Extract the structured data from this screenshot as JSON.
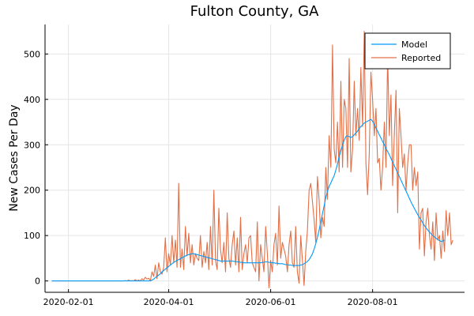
{
  "chart_data": {
    "type": "line",
    "title": "Fulton County, GA",
    "xlabel": "",
    "ylabel": "New Cases Per Day",
    "x_ticks": [
      "2020-02-01",
      "2020-04-01",
      "2020-06-01",
      "2020-08-01"
    ],
    "y_ticks": [
      0,
      100,
      200,
      300,
      400,
      500
    ],
    "xlim": [
      "2020-01-18",
      "2020-09-25"
    ],
    "ylim": [
      -25,
      565
    ],
    "grid": true,
    "legend_position": "top-right",
    "start_date": "2020-01-22",
    "series": [
      {
        "name": "Model",
        "color": "#009af9",
        "values": [
          0,
          0,
          0,
          0,
          0,
          0,
          0,
          0,
          0,
          0,
          0,
          0,
          0,
          0,
          0,
          0,
          0,
          0,
          0,
          0,
          0,
          0,
          0,
          0,
          0,
          0,
          0,
          0,
          0,
          0,
          0,
          0,
          0,
          0,
          0,
          0,
          0,
          0,
          0,
          0,
          0,
          0,
          0,
          0,
          0,
          0,
          0,
          0,
          0,
          0,
          0,
          0,
          0,
          0,
          0,
          0,
          0,
          0,
          0,
          0,
          2,
          4,
          7,
          10,
          13,
          16,
          20,
          23,
          26,
          29,
          32,
          35,
          38,
          41,
          43,
          45,
          47,
          49,
          51,
          53,
          55,
          57,
          58,
          59,
          60,
          60,
          59,
          58,
          57,
          56,
          55,
          54,
          53,
          52,
          51,
          50,
          49,
          48,
          47,
          46,
          45,
          44,
          44,
          44,
          44,
          44,
          44,
          44,
          44,
          43,
          43,
          42,
          42,
          41,
          41,
          40,
          40,
          40,
          40,
          40,
          40,
          40,
          40,
          40,
          40,
          40,
          41,
          41,
          42,
          42,
          41,
          41,
          40,
          40,
          39,
          39,
          38,
          38,
          38,
          37,
          36,
          36,
          35,
          35,
          34,
          34,
          34,
          34,
          34,
          35,
          36,
          38,
          40,
          43,
          47,
          53,
          60,
          70,
          82,
          96,
          112,
          130,
          148,
          166,
          184,
          198,
          208,
          216,
          224,
          232,
          244,
          258,
          274,
          288,
          300,
          310,
          318,
          320,
          318,
          316,
          318,
          322,
          326,
          330,
          336,
          340,
          344,
          348,
          350,
          352,
          354,
          356,
          352,
          345,
          337,
          330,
          322,
          315,
          307,
          300,
          292,
          285,
          278,
          270,
          262,
          254,
          246,
          238,
          230,
          222,
          214,
          206,
          198,
          190,
          182,
          174,
          167,
          160,
          153,
          146,
          140,
          134,
          128,
          122,
          117,
          112,
          108,
          104,
          100,
          97,
          94,
          91,
          89,
          87,
          88,
          90
        ]
      },
      {
        "name": "Reported",
        "color": "#e26f46",
        "values": [
          0,
          0,
          0,
          0,
          0,
          0,
          0,
          0,
          0,
          0,
          0,
          0,
          0,
          0,
          0,
          0,
          0,
          0,
          0,
          0,
          0,
          0,
          0,
          0,
          0,
          0,
          0,
          0,
          0,
          0,
          0,
          0,
          0,
          0,
          0,
          0,
          0,
          0,
          0,
          0,
          0,
          0,
          0,
          0,
          1,
          0,
          2,
          0,
          1,
          0,
          3,
          0,
          2,
          0,
          5,
          2,
          8,
          4,
          6,
          0,
          20,
          10,
          35,
          5,
          40,
          20,
          15,
          30,
          95,
          20,
          60,
          35,
          100,
          40,
          90,
          30,
          215,
          30,
          70,
          25,
          120,
          55,
          105,
          40,
          80,
          35,
          60,
          50,
          45,
          100,
          30,
          65,
          40,
          85,
          25,
          120,
          35,
          200,
          45,
          25,
          160,
          70,
          40,
          85,
          20,
          150,
          50,
          30,
          80,
          110,
          35,
          95,
          20,
          140,
          25,
          60,
          80,
          40,
          95,
          100,
          40,
          30,
          20,
          130,
          0,
          80,
          50,
          20,
          120,
          60,
          -15,
          45,
          20,
          80,
          105,
          35,
          165,
          50,
          85,
          70,
          55,
          20,
          80,
          110,
          40,
          30,
          120,
          20,
          -5,
          100,
          45,
          -10,
          65,
          110,
          200,
          215,
          175,
          135,
          85,
          230,
          180,
          95,
          140,
          120,
          250,
          180,
          320,
          250,
          520,
          290,
          260,
          350,
          240,
          440,
          250,
          400,
          380,
          250,
          490,
          240,
          290,
          440,
          320,
          380,
          310,
          470,
          340,
          550,
          260,
          190,
          280,
          460,
          400,
          320,
          380,
          260,
          270,
          200,
          250,
          350,
          250,
          500,
          320,
          410,
          210,
          320,
          420,
          150,
          380,
          320,
          250,
          280,
          200,
          260,
          300,
          300,
          200,
          250,
          210,
          240,
          70,
          150,
          160,
          55,
          130,
          160,
          100,
          70,
          130,
          45,
          150,
          90,
          100,
          50,
          110,
          65,
          155,
          100,
          150,
          80,
          90
        ]
      }
    ]
  }
}
